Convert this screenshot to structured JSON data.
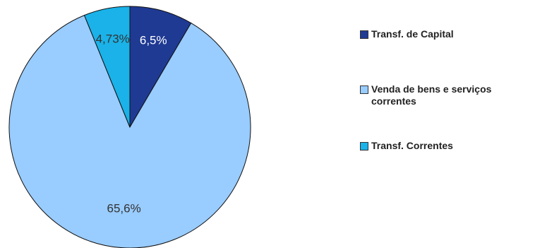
{
  "chart_data": {
    "type": "pie",
    "categories": [
      "Transf. de Capital",
      "Venda de bens e serviços correntes",
      "Transf. Correntes"
    ],
    "values": [
      6.5,
      65.6,
      4.73
    ],
    "value_labels": [
      "6,5%",
      "65,6%",
      "4,73%"
    ],
    "colors": [
      "#1f3a93",
      "#99ccff",
      "#1ab2e8"
    ],
    "legend": "right"
  }
}
